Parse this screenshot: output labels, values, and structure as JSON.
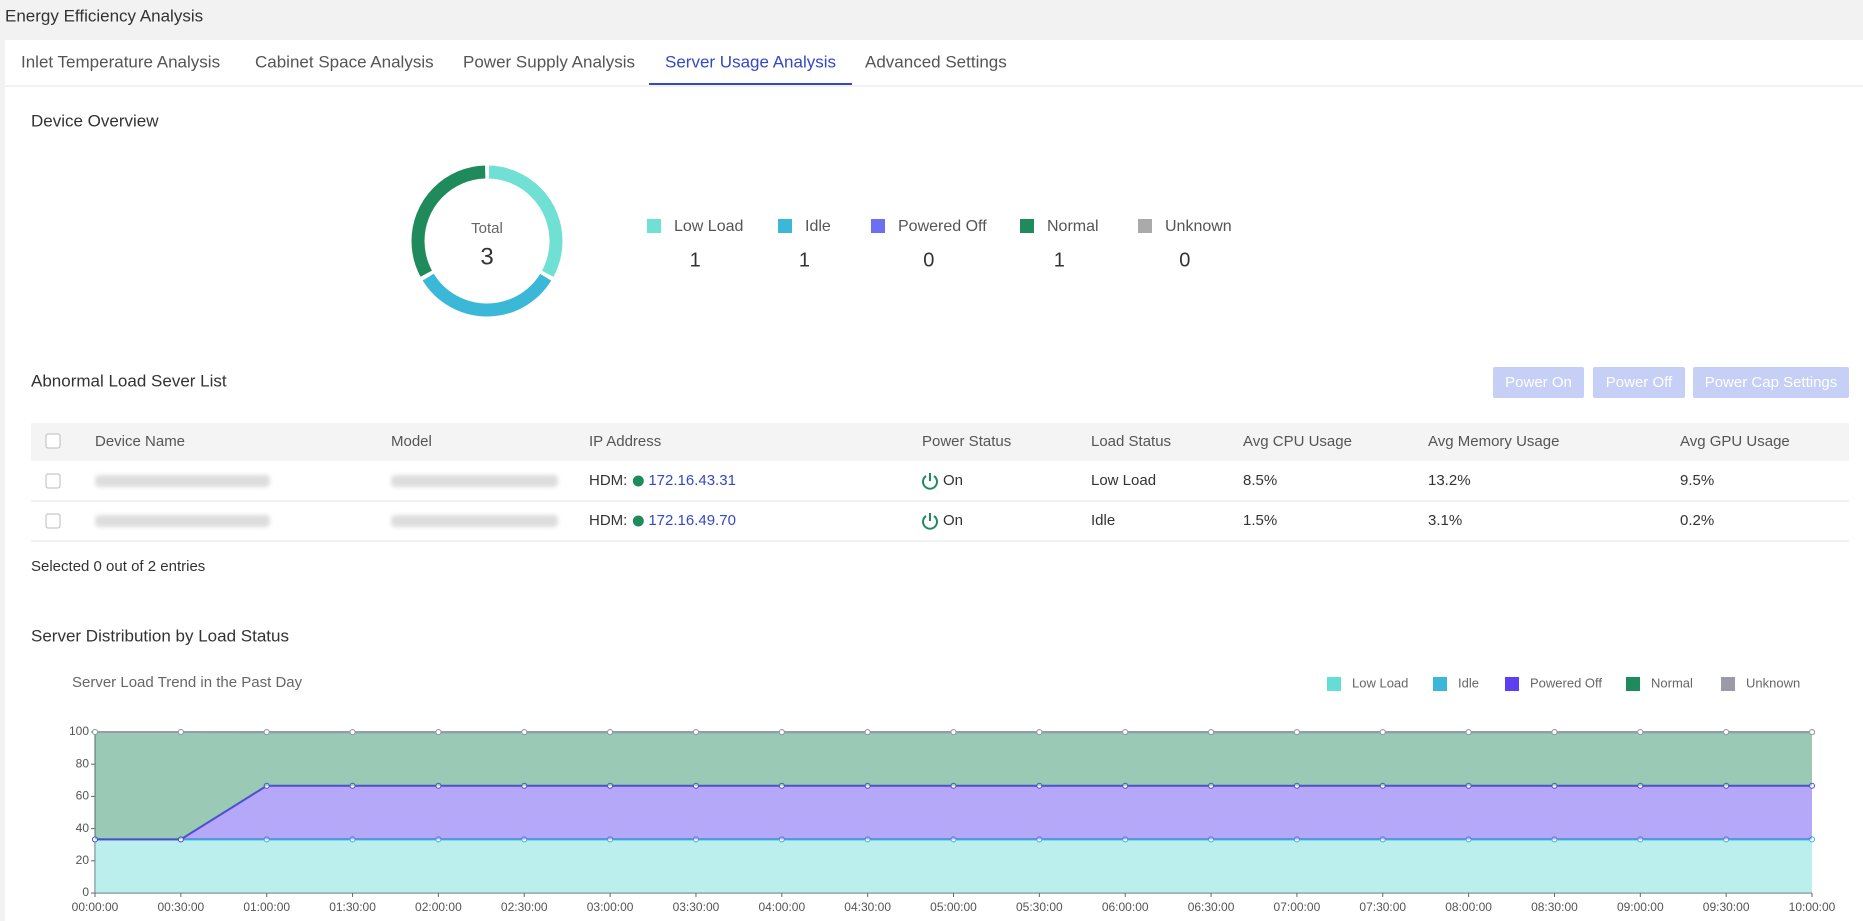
{
  "header": {
    "title": "Energy Efficiency Analysis"
  },
  "tabs": {
    "items": [
      "Inlet Temperature Analysis",
      "Cabinet Space Analysis",
      "Power Supply Analysis",
      "Server Usage Analysis",
      "Advanced Settings"
    ],
    "active": 3
  },
  "overview": {
    "title": "Device Overview",
    "total_label": "Total",
    "total": 3,
    "items": [
      {
        "name": "Low Load",
        "value": 1,
        "color": "#6fe0d3"
      },
      {
        "name": "Idle",
        "value": 1,
        "color": "#3bb8d7"
      },
      {
        "name": "Powered Off",
        "value": 0,
        "color": "#6e6ef5"
      },
      {
        "name": "Normal",
        "value": 1,
        "color": "#1f8a5c"
      },
      {
        "name": "Unknown",
        "value": 0,
        "color": "#aaaaaa"
      }
    ]
  },
  "table": {
    "title": "Abnormal Load Sever List",
    "buttons": [
      "Power On",
      "Power Off",
      "Power Cap Settings"
    ],
    "columns": [
      "Device Name",
      "Model",
      "IP Address",
      "Power Status",
      "Load Status",
      "Avg CPU Usage",
      "Avg Memory Usage",
      "Avg GPU Usage"
    ],
    "ip_prefix": "HDM:",
    "rows": [
      {
        "ip": "172.16.43.31",
        "power": "On",
        "load": "Low Load",
        "cpu": "8.5%",
        "memory": "13.2%",
        "gpu": "9.5%"
      },
      {
        "ip": "172.16.49.70",
        "power": "On",
        "load": "Idle",
        "cpu": "1.5%",
        "memory": "3.1%",
        "gpu": "0.2%"
      }
    ],
    "footer": "Selected 0 out of 2 entries"
  },
  "section_title": "Server Distribution by Load Status",
  "chart_data": {
    "type": "stacked_area",
    "title": "Server Load Trend in the Past Day",
    "categories": [
      "00:00:00",
      "00:30:00",
      "01:00:00",
      "01:30:00",
      "02:00:00",
      "02:30:00",
      "03:00:00",
      "03:30:00",
      "04:00:00",
      "04:30:00",
      "05:00:00",
      "05:30:00",
      "06:00:00",
      "06:30:00",
      "07:00:00",
      "07:30:00",
      "08:00:00",
      "08:30:00",
      "09:00:00",
      "09:30:00",
      "10:00:00"
    ],
    "series": [
      {
        "name": "Low Load",
        "color": "#66dcd6",
        "values": [
          33.3,
          33.3,
          33.3,
          33.3,
          33.3,
          33.3,
          33.3,
          33.3,
          33.3,
          33.3,
          33.3,
          33.3,
          33.3,
          33.3,
          33.3,
          33.3,
          33.3,
          33.3,
          33.3,
          33.3,
          33.3
        ]
      },
      {
        "name": "Idle",
        "color": "#3bb8d7",
        "values": [
          0,
          0,
          0,
          0,
          0,
          0,
          0,
          0,
          0,
          0,
          0,
          0,
          0,
          0,
          0,
          0,
          0,
          0,
          0,
          0,
          0
        ]
      },
      {
        "name": "Powered Off",
        "color": "#5b3ff0",
        "values": [
          0,
          0,
          33.3,
          33.3,
          33.3,
          33.3,
          33.3,
          33.3,
          33.3,
          33.3,
          33.3,
          33.3,
          33.3,
          33.3,
          33.3,
          33.3,
          33.3,
          33.3,
          33.3,
          33.3,
          33.3
        ]
      },
      {
        "name": "Normal",
        "color": "#1f8a5c",
        "values": [
          66.7,
          66.7,
          33.3,
          33.3,
          33.3,
          33.3,
          33.3,
          33.3,
          33.3,
          33.3,
          33.3,
          33.3,
          33.3,
          33.3,
          33.3,
          33.3,
          33.3,
          33.3,
          33.3,
          33.3,
          33.3
        ]
      },
      {
        "name": "Unknown",
        "color": "#9a9aa8",
        "values": [
          0,
          0,
          0,
          0,
          0,
          0,
          0,
          0,
          0,
          0,
          0,
          0,
          0,
          0,
          0,
          0,
          0,
          0,
          0,
          0,
          0
        ]
      }
    ],
    "ylim": [
      0,
      100
    ],
    "yticks": [
      0,
      20,
      40,
      60,
      80,
      100
    ],
    "legend": "top-right"
  }
}
